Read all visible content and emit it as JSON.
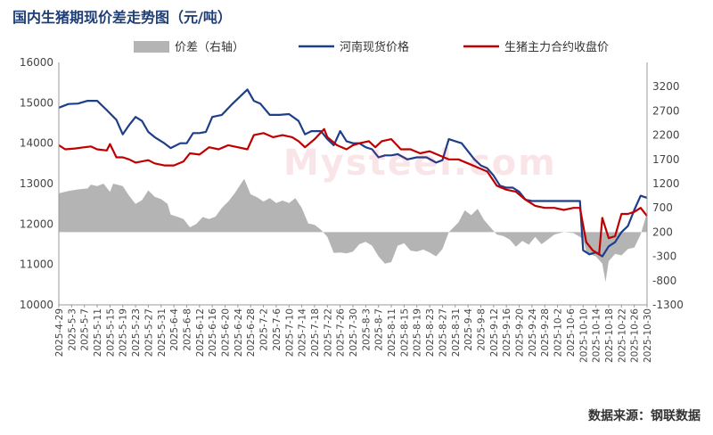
{
  "title": "国内生猪期现价差走势图（元/吨）",
  "source": "数据来源：钢联数据",
  "watermark": "Mysteel.com",
  "chart_data": {
    "type": "line",
    "left_axis": {
      "min": 10000,
      "max": 16000,
      "step": 1000
    },
    "right_axis": {
      "min": -1300,
      "max": 3700,
      "ticks": [
        -1300,
        -800,
        -300,
        200,
        700,
        1200,
        1700,
        2200,
        2700,
        3200
      ]
    },
    "x_ticks": [
      "2025-4-29",
      "2025-5-3",
      "2025-5-7",
      "2025-5-11",
      "2025-5-15",
      "2025-5-19",
      "2025-5-23",
      "2025-5-27",
      "2025-5-31",
      "2025-6-4",
      "2025-6-8",
      "2025-6-12",
      "2025-6-16",
      "2025-6-20",
      "2025-6-24",
      "2025-6-28",
      "2025-7-2",
      "2025-7-6",
      "2025-7-10",
      "2025-7-14",
      "2025-7-18",
      "2025-7-22",
      "2025-7-26",
      "2025-7-30",
      "2025-8-3",
      "2025-8-7",
      "2025-8-11",
      "2025-8-15",
      "2025-8-19",
      "2025-8-23",
      "2025-8-27",
      "2025-8-31",
      "2025-9-4",
      "2025-9-8",
      "2025-9-12",
      "2025-9-16",
      "2025-9-20",
      "2025-9-24",
      "2025-9-28",
      "2025-10-2",
      "2025-10-6",
      "2025-10-10",
      "2025-10-14",
      "2025-10-18",
      "2025-10-22",
      "2025-10-26",
      "2025-10-30"
    ],
    "x_start": "2025-4-29",
    "x_end": "2025-10-30",
    "series": [
      {
        "name": "价差（右轴）",
        "type": "area",
        "axis": "right",
        "color": "#b4b4b4",
        "points": [
          [
            "2025-4-29",
            1000
          ],
          [
            "2025-5-2",
            1050
          ],
          [
            "2025-5-5",
            1080
          ],
          [
            "2025-5-8",
            1100
          ],
          [
            "2025-5-9",
            1180
          ],
          [
            "2025-5-11",
            1150
          ],
          [
            "2025-5-13",
            1200
          ],
          [
            "2025-5-15",
            1030
          ],
          [
            "2025-5-16",
            1200
          ],
          [
            "2025-5-19",
            1150
          ],
          [
            "2025-5-21",
            950
          ],
          [
            "2025-5-23",
            780
          ],
          [
            "2025-5-25",
            860
          ],
          [
            "2025-5-27",
            1060
          ],
          [
            "2025-5-29",
            930
          ],
          [
            "2025-5-31",
            880
          ],
          [
            "2025-6-2",
            780
          ],
          [
            "2025-6-3",
            560
          ],
          [
            "2025-6-5",
            520
          ],
          [
            "2025-6-7",
            470
          ],
          [
            "2025-6-9",
            300
          ],
          [
            "2025-6-11",
            370
          ],
          [
            "2025-6-13",
            510
          ],
          [
            "2025-6-15",
            470
          ],
          [
            "2025-6-17",
            520
          ],
          [
            "2025-6-19",
            700
          ],
          [
            "2025-6-21",
            830
          ],
          [
            "2025-6-23",
            1000
          ],
          [
            "2025-6-26",
            1300
          ],
          [
            "2025-6-28",
            980
          ],
          [
            "2025-6-30",
            920
          ],
          [
            "2025-7-2",
            830
          ],
          [
            "2025-7-4",
            900
          ],
          [
            "2025-7-6",
            800
          ],
          [
            "2025-7-8",
            850
          ],
          [
            "2025-7-10",
            800
          ],
          [
            "2025-7-12",
            900
          ],
          [
            "2025-7-14",
            700
          ],
          [
            "2025-7-16",
            380
          ],
          [
            "2025-7-18",
            350
          ],
          [
            "2025-7-20",
            250
          ],
          [
            "2025-7-22",
            100
          ],
          [
            "2025-7-24",
            -230
          ],
          [
            "2025-7-26",
            -220
          ],
          [
            "2025-7-28",
            -240
          ],
          [
            "2025-7-30",
            -200
          ],
          [
            "2025-8-1",
            -50
          ],
          [
            "2025-8-3",
            0
          ],
          [
            "2025-8-5",
            -80
          ],
          [
            "2025-8-7",
            -300
          ],
          [
            "2025-8-9",
            -450
          ],
          [
            "2025-8-11",
            -420
          ],
          [
            "2025-8-13",
            -80
          ],
          [
            "2025-8-15",
            -30
          ],
          [
            "2025-8-17",
            -180
          ],
          [
            "2025-8-19",
            -200
          ],
          [
            "2025-8-21",
            -160
          ],
          [
            "2025-8-23",
            -220
          ],
          [
            "2025-8-25",
            -300
          ],
          [
            "2025-8-27",
            -150
          ],
          [
            "2025-8-29",
            200
          ],
          [
            "2025-9-1",
            400
          ],
          [
            "2025-9-3",
            650
          ],
          [
            "2025-9-5",
            550
          ],
          [
            "2025-9-7",
            680
          ],
          [
            "2025-9-9",
            450
          ],
          [
            "2025-9-11",
            300
          ],
          [
            "2025-9-13",
            150
          ],
          [
            "2025-9-15",
            120
          ],
          [
            "2025-9-17",
            50
          ],
          [
            "2025-9-19",
            -100
          ],
          [
            "2025-9-21",
            20
          ],
          [
            "2025-9-23",
            -60
          ],
          [
            "2025-9-25",
            100
          ],
          [
            "2025-9-27",
            -50
          ],
          [
            "2025-9-29",
            50
          ],
          [
            "2025-10-1",
            150
          ],
          [
            "2025-10-4",
            200
          ],
          [
            "2025-10-7",
            180
          ],
          [
            "2025-10-9",
            100
          ],
          [
            "2025-10-10",
            50
          ],
          [
            "2025-10-11",
            -200
          ],
          [
            "2025-10-12",
            -250
          ],
          [
            "2025-10-14",
            -300
          ],
          [
            "2025-10-16",
            -450
          ],
          [
            "2025-10-17",
            -830
          ],
          [
            "2025-10-18",
            -400
          ],
          [
            "2025-10-20",
            -250
          ],
          [
            "2025-10-22",
            -280
          ],
          [
            "2025-10-24",
            -150
          ],
          [
            "2025-10-26",
            -120
          ],
          [
            "2025-10-28",
            150
          ],
          [
            "2025-10-30",
            600
          ]
        ]
      },
      {
        "name": "河南现货价格",
        "type": "line",
        "axis": "left",
        "color": "#1f3e8a",
        "points": [
          [
            "2025-4-29",
            14880
          ],
          [
            "2025-5-2",
            14970
          ],
          [
            "2025-5-5",
            14980
          ],
          [
            "2025-5-8",
            15050
          ],
          [
            "2025-5-11",
            15050
          ],
          [
            "2025-5-14",
            14820
          ],
          [
            "2025-5-17",
            14580
          ],
          [
            "2025-5-19",
            14220
          ],
          [
            "2025-5-21",
            14450
          ],
          [
            "2025-5-23",
            14650
          ],
          [
            "2025-5-25",
            14550
          ],
          [
            "2025-5-27",
            14280
          ],
          [
            "2025-5-29",
            14150
          ],
          [
            "2025-6-1",
            14000
          ],
          [
            "2025-6-3",
            13880
          ],
          [
            "2025-6-6",
            14000
          ],
          [
            "2025-6-8",
            14000
          ],
          [
            "2025-6-10",
            14250
          ],
          [
            "2025-6-12",
            14250
          ],
          [
            "2025-6-14",
            14280
          ],
          [
            "2025-6-16",
            14650
          ],
          [
            "2025-6-19",
            14700
          ],
          [
            "2025-6-22",
            14950
          ],
          [
            "2025-6-25",
            15180
          ],
          [
            "2025-6-27",
            15330
          ],
          [
            "2025-6-29",
            15050
          ],
          [
            "2025-7-1",
            14980
          ],
          [
            "2025-7-4",
            14700
          ],
          [
            "2025-7-7",
            14700
          ],
          [
            "2025-7-10",
            14720
          ],
          [
            "2025-7-13",
            14550
          ],
          [
            "2025-7-15",
            14220
          ],
          [
            "2025-7-17",
            14300
          ],
          [
            "2025-7-20",
            14300
          ],
          [
            "2025-7-22",
            14100
          ],
          [
            "2025-7-24",
            13950
          ],
          [
            "2025-7-26",
            14300
          ],
          [
            "2025-7-28",
            14050
          ],
          [
            "2025-7-30",
            14000
          ],
          [
            "2025-8-1",
            14000
          ],
          [
            "2025-8-3",
            13900
          ],
          [
            "2025-8-5",
            13850
          ],
          [
            "2025-8-7",
            13650
          ],
          [
            "2025-8-9",
            13700
          ],
          [
            "2025-8-11",
            13700
          ],
          [
            "2025-8-13",
            13730
          ],
          [
            "2025-8-16",
            13600
          ],
          [
            "2025-8-19",
            13650
          ],
          [
            "2025-8-22",
            13650
          ],
          [
            "2025-8-25",
            13520
          ],
          [
            "2025-8-27",
            13580
          ],
          [
            "2025-8-29",
            14100
          ],
          [
            "2025-8-31",
            14050
          ],
          [
            "2025-9-2",
            14000
          ],
          [
            "2025-9-4",
            13800
          ],
          [
            "2025-9-6",
            13600
          ],
          [
            "2025-9-8",
            13450
          ],
          [
            "2025-9-10",
            13380
          ],
          [
            "2025-9-12",
            13200
          ],
          [
            "2025-9-14",
            12950
          ],
          [
            "2025-9-16",
            12900
          ],
          [
            "2025-9-18",
            12900
          ],
          [
            "2025-9-20",
            12800
          ],
          [
            "2025-9-22",
            12600
          ],
          [
            "2025-9-24",
            12570
          ],
          [
            "2025-9-26",
            12570
          ],
          [
            "2025-9-28",
            12570
          ],
          [
            "2025-10-1",
            12570
          ],
          [
            "2025-10-4",
            12570
          ],
          [
            "2025-10-7",
            12570
          ],
          [
            "2025-10-9",
            12570
          ],
          [
            "2025-10-10",
            11350
          ],
          [
            "2025-10-12",
            11250
          ],
          [
            "2025-10-14",
            11300
          ],
          [
            "2025-10-16",
            11200
          ],
          [
            "2025-10-18",
            11450
          ],
          [
            "2025-10-20",
            11550
          ],
          [
            "2025-10-22",
            11800
          ],
          [
            "2025-10-24",
            11950
          ],
          [
            "2025-10-26",
            12350
          ],
          [
            "2025-10-28",
            12700
          ],
          [
            "2025-10-30",
            12650
          ]
        ]
      },
      {
        "name": "生猪主力合约收盘价",
        "type": "line",
        "axis": "left",
        "color": "#c00000",
        "points": [
          [
            "2025-4-29",
            13950
          ],
          [
            "2025-5-1",
            13850
          ],
          [
            "2025-5-4",
            13870
          ],
          [
            "2025-5-7",
            13900
          ],
          [
            "2025-5-9",
            13920
          ],
          [
            "2025-5-11",
            13850
          ],
          [
            "2025-5-14",
            13820
          ],
          [
            "2025-5-15",
            13980
          ],
          [
            "2025-5-17",
            13650
          ],
          [
            "2025-5-19",
            13650
          ],
          [
            "2025-5-21",
            13600
          ],
          [
            "2025-5-23",
            13520
          ],
          [
            "2025-5-25",
            13550
          ],
          [
            "2025-5-27",
            13580
          ],
          [
            "2025-5-29",
            13500
          ],
          [
            "2025-6-1",
            13450
          ],
          [
            "2025-6-4",
            13450
          ],
          [
            "2025-6-7",
            13550
          ],
          [
            "2025-6-9",
            13750
          ],
          [
            "2025-6-12",
            13720
          ],
          [
            "2025-6-15",
            13900
          ],
          [
            "2025-6-18",
            13850
          ],
          [
            "2025-6-21",
            13950
          ],
          [
            "2025-6-24",
            13900
          ],
          [
            "2025-6-27",
            13850
          ],
          [
            "2025-6-29",
            14200
          ],
          [
            "2025-7-2",
            14250
          ],
          [
            "2025-7-5",
            14150
          ],
          [
            "2025-7-8",
            14200
          ],
          [
            "2025-7-11",
            14150
          ],
          [
            "2025-7-13",
            14050
          ],
          [
            "2025-7-15",
            13900
          ],
          [
            "2025-7-18",
            14100
          ],
          [
            "2025-7-21",
            14350
          ],
          [
            "2025-7-22",
            14150
          ],
          [
            "2025-7-25",
            13950
          ],
          [
            "2025-7-28",
            13850
          ],
          [
            "2025-7-30",
            13950
          ],
          [
            "2025-8-1",
            14000
          ],
          [
            "2025-8-4",
            14050
          ],
          [
            "2025-8-6",
            13900
          ],
          [
            "2025-8-8",
            14050
          ],
          [
            "2025-8-11",
            14100
          ],
          [
            "2025-8-14",
            13850
          ],
          [
            "2025-8-17",
            13850
          ],
          [
            "2025-8-20",
            13750
          ],
          [
            "2025-8-23",
            13800
          ],
          [
            "2025-8-26",
            13700
          ],
          [
            "2025-8-29",
            13600
          ],
          [
            "2025-9-1",
            13600
          ],
          [
            "2025-9-4",
            13500
          ],
          [
            "2025-9-7",
            13400
          ],
          [
            "2025-9-10",
            13300
          ],
          [
            "2025-9-13",
            12950
          ],
          [
            "2025-9-16",
            12850
          ],
          [
            "2025-9-19",
            12800
          ],
          [
            "2025-9-22",
            12600
          ],
          [
            "2025-9-25",
            12450
          ],
          [
            "2025-9-28",
            12400
          ],
          [
            "2025-10-1",
            12400
          ],
          [
            "2025-10-4",
            12350
          ],
          [
            "2025-10-7",
            12400
          ],
          [
            "2025-10-9",
            12400
          ],
          [
            "2025-10-11",
            11550
          ],
          [
            "2025-10-13",
            11350
          ],
          [
            "2025-10-15",
            11250
          ],
          [
            "2025-10-16",
            12150
          ],
          [
            "2025-10-18",
            11650
          ],
          [
            "2025-10-20",
            11700
          ],
          [
            "2025-10-22",
            12250
          ],
          [
            "2025-10-24",
            12250
          ],
          [
            "2025-10-26",
            12300
          ],
          [
            "2025-10-28",
            12400
          ],
          [
            "2025-10-30",
            12200
          ]
        ]
      }
    ]
  }
}
